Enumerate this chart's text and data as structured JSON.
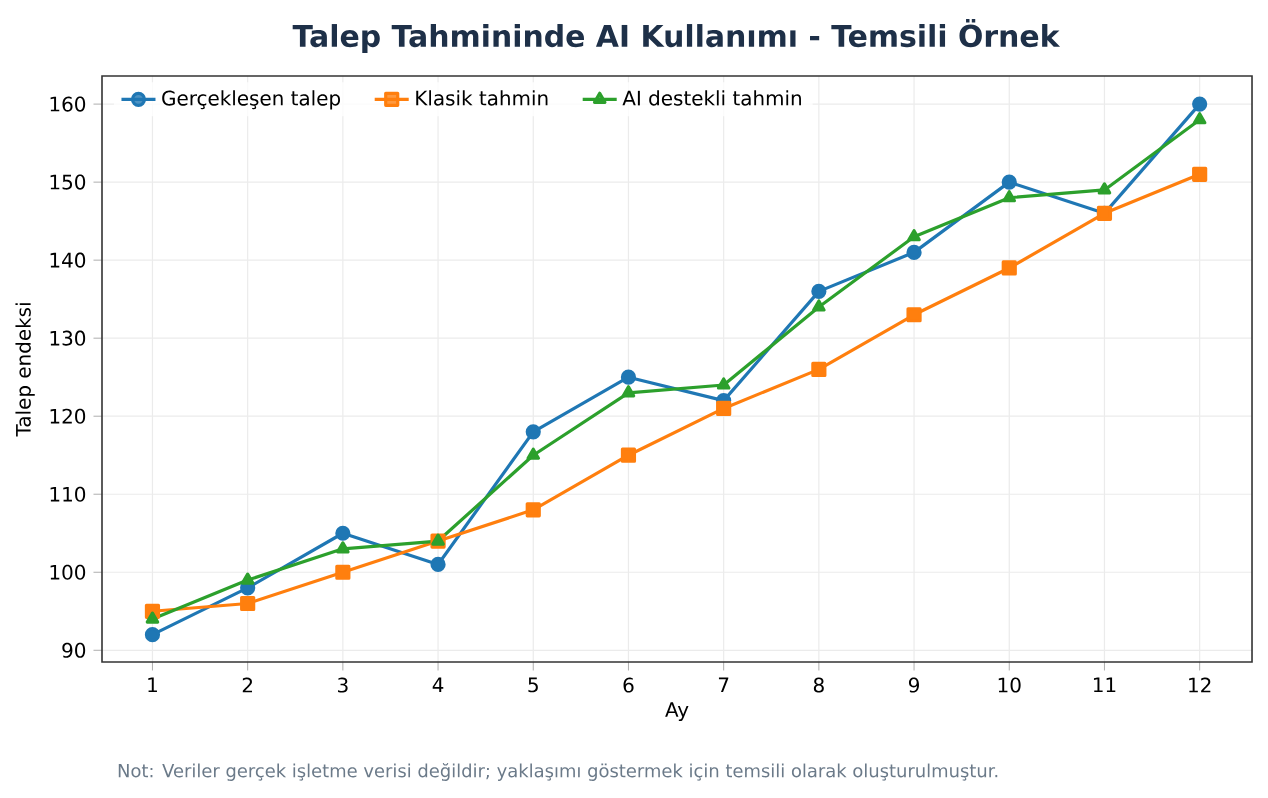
{
  "chart_data": {
    "type": "line",
    "title": "Talep Tahmininde AI Kullanımı - Temsili Örnek",
    "xlabel": "Ay",
    "ylabel": "Talep endeksi",
    "x": [
      1,
      2,
      3,
      4,
      5,
      6,
      7,
      8,
      9,
      10,
      11,
      12
    ],
    "series": [
      {
        "name": "Gerçekleşen talep",
        "color": "#1f77b4",
        "marker": "circle",
        "values": [
          92,
          98,
          105,
          101,
          118,
          125,
          122,
          136,
          141,
          150,
          146,
          160
        ]
      },
      {
        "name": "Klasik tahmin",
        "color": "#ff7f0e",
        "marker": "square",
        "values": [
          95,
          96,
          100,
          104,
          108,
          115,
          121,
          126,
          133,
          139,
          146,
          151
        ]
      },
      {
        "name": "AI destekli tahmin",
        "color": "#2ca02c",
        "marker": "triangle",
        "values": [
          94,
          99,
          103,
          104,
          115,
          123,
          124,
          134,
          143,
          148,
          149,
          158
        ]
      }
    ],
    "xlim": [
      0.47,
      12.55
    ],
    "ylim": [
      88.5,
      163.6
    ],
    "xticks": [
      1,
      2,
      3,
      4,
      5,
      6,
      7,
      8,
      9,
      10,
      11,
      12
    ],
    "yticks": [
      90,
      100,
      110,
      120,
      130,
      140,
      150,
      160
    ],
    "grid": true,
    "legend": "top left",
    "line_style": "solid",
    "annotations": [
      "Not: Veriler gerçek işletme verisi değildir; yaklaşımı göstermek için temsili olarak oluşturulmuştur."
    ]
  }
}
